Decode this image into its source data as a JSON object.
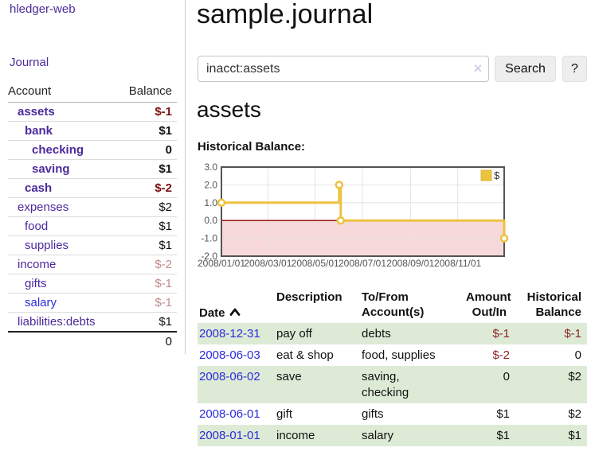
{
  "app": {
    "brand": "hledger-web",
    "nav_journal": "Journal"
  },
  "sidebar": {
    "accounts_header": {
      "account": "Account",
      "balance": "Balance"
    },
    "accounts": [
      {
        "name": "assets",
        "depth": 1,
        "bold": true,
        "blue": false,
        "balance": "$-1",
        "style": "neg-strong"
      },
      {
        "name": "bank",
        "depth": 2,
        "bold": true,
        "blue": false,
        "balance": "$1",
        "style": "pos-strong"
      },
      {
        "name": "checking",
        "depth": 3,
        "bold": true,
        "blue": false,
        "balance": "0",
        "style": "pos-strong"
      },
      {
        "name": "saving",
        "depth": 3,
        "bold": true,
        "blue": false,
        "balance": "$1",
        "style": "pos-strong"
      },
      {
        "name": "cash",
        "depth": 2,
        "bold": true,
        "blue": false,
        "balance": "$-2",
        "style": "neg-strong"
      },
      {
        "name": "expenses",
        "depth": 1,
        "bold": false,
        "blue": false,
        "balance": "$2",
        "style": "pos"
      },
      {
        "name": "food",
        "depth": 2,
        "bold": false,
        "blue": false,
        "balance": "$1",
        "style": "pos"
      },
      {
        "name": "supplies",
        "depth": 2,
        "bold": false,
        "blue": false,
        "balance": "$1",
        "style": "pos"
      },
      {
        "name": "income",
        "depth": 1,
        "bold": false,
        "blue": false,
        "balance": "$-2",
        "style": "neg-faded"
      },
      {
        "name": "gifts",
        "depth": 2,
        "bold": false,
        "blue": false,
        "balance": "$-1",
        "style": "neg-faded"
      },
      {
        "name": "salary",
        "depth": 2,
        "bold": false,
        "blue": true,
        "balance": "$-1",
        "style": "neg-faded"
      },
      {
        "name": "liabilities:debts",
        "depth": 1,
        "bold": false,
        "blue": false,
        "balance": "$1",
        "style": "pos"
      }
    ],
    "total": "0"
  },
  "header": {
    "title": "sample.journal"
  },
  "search": {
    "value": "inacct:assets",
    "clear_icon": "×",
    "button": "Search",
    "help_button": "?"
  },
  "main": {
    "account_title": "assets",
    "chart_label": "Historical Balance:"
  },
  "chart_data": {
    "type": "line",
    "title": "Historical Balance",
    "step": true,
    "series": [
      {
        "name": "$",
        "color": "#edc240",
        "points": [
          [
            "2008-01-01",
            1
          ],
          [
            "2008-06-01",
            2
          ],
          [
            "2008-06-03",
            0
          ],
          [
            "2008-12-31",
            -1
          ]
        ]
      }
    ],
    "xlim": [
      "2008-01-01",
      "2008-12-31"
    ],
    "ylim": [
      -2,
      3
    ],
    "x_ticks": [
      "2008/01/01",
      "2008/03/01",
      "2008/05/01",
      "2008/07/01",
      "2008/09/01",
      "2008/11/01"
    ],
    "y_ticks": [
      3,
      2,
      1,
      0,
      -1,
      -2
    ],
    "legend": "$",
    "grid": true,
    "legend_position": "top-right",
    "negative_region_color": "#f8d9d9",
    "zero_line_color": "#8b0000",
    "axis_label_color": "#545454",
    "border_color": "#545454"
  },
  "register": {
    "columns": [
      "Date",
      "Description",
      "To/From\nAccount(s)",
      "Amount\nOut/In",
      "Historical\nBalance"
    ],
    "rows": [
      {
        "date": "2008-12-31",
        "description": "pay off",
        "accounts": "debts",
        "amount": "$-1",
        "balance": "$-1"
      },
      {
        "date": "2008-06-03",
        "description": "eat & shop",
        "accounts": "food, supplies",
        "amount": "$-2",
        "balance": "0"
      },
      {
        "date": "2008-06-02",
        "description": "save",
        "accounts": "saving,\nchecking",
        "amount": "0",
        "balance": "$2"
      },
      {
        "date": "2008-06-01",
        "description": "gift",
        "accounts": "gifts",
        "amount": "$1",
        "balance": "$2"
      },
      {
        "date": "2008-01-01",
        "description": "income",
        "accounts": "salary",
        "amount": "$1",
        "balance": "$1"
      }
    ]
  }
}
